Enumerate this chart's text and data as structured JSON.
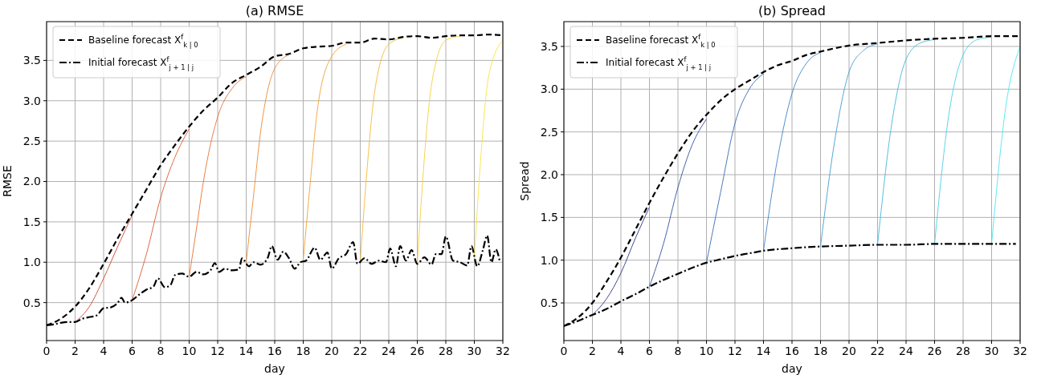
{
  "chart_data": [
    {
      "type": "line",
      "title": "(a) RMSE",
      "xlabel": "day",
      "ylabel": "RMSE",
      "xlim": [
        0,
        32
      ],
      "ylim": [
        0.03,
        3.98
      ],
      "xticks": [
        0,
        2,
        4,
        6,
        8,
        10,
        12,
        14,
        16,
        18,
        20,
        22,
        24,
        26,
        28,
        30,
        32
      ],
      "yticks": [
        0.5,
        {
          "value": 1,
          "label": "1.0"
        },
        1.5,
        {
          "value": 2,
          "label": "2.0"
        },
        2.5,
        {
          "value": 3,
          "label": "3.0"
        },
        3.5
      ],
      "grid": true,
      "legend": "top left",
      "series": [
        {
          "color": "#d2452f",
          "x": [
            2,
            3,
            4,
            5,
            6
          ],
          "values": [
            0.26,
            0.45,
            0.8,
            1.2,
            1.58
          ]
        },
        {
          "color": "#dc5a2f",
          "x": [
            6,
            7,
            8,
            9,
            10
          ],
          "values": [
            0.53,
            1.1,
            1.8,
            2.3,
            2.65
          ]
        },
        {
          "color": "#e57330",
          "x": [
            10,
            10.5,
            11,
            12,
            13,
            14
          ],
          "values": [
            0.82,
            1.4,
            2.0,
            2.8,
            3.15,
            3.3
          ]
        },
        {
          "color": "#ec8a32",
          "x": [
            14,
            14.5,
            15,
            16,
            17
          ],
          "values": [
            1.0,
            1.8,
            2.6,
            3.4,
            3.57
          ]
        },
        {
          "color": "#f0a236",
          "x": [
            18,
            18.5,
            19,
            20,
            21
          ],
          "values": [
            1.02,
            2.0,
            2.9,
            3.55,
            3.7
          ]
        },
        {
          "color": "#f3b93a",
          "x": [
            22,
            22.5,
            23,
            24,
            25
          ],
          "values": [
            1.0,
            2.2,
            3.1,
            3.7,
            3.78
          ]
        },
        {
          "color": "#f5cf3d",
          "x": [
            26,
            26.5,
            27,
            28,
            29
          ],
          "values": [
            0.98,
            2.3,
            3.2,
            3.75,
            3.8
          ]
        },
        {
          "color": "#f7e341",
          "x": [
            30,
            30.5,
            31,
            32
          ],
          "values": [
            1.05,
            2.4,
            3.3,
            3.75
          ]
        },
        {
          "name": "Baseline forecast X$^{f}$$_{k | 0}$",
          "color": "#000000",
          "line_style": "dashed",
          "x": [
            0,
            1,
            2,
            3,
            4,
            5,
            6,
            7,
            8,
            9,
            10,
            11,
            12,
            13,
            14,
            15,
            16,
            17,
            18,
            19,
            20,
            21,
            22,
            23,
            24,
            25,
            26,
            27,
            28,
            29,
            30,
            31,
            32
          ],
          "values": [
            0.22,
            0.3,
            0.45,
            0.68,
            0.98,
            1.3,
            1.6,
            1.9,
            2.2,
            2.45,
            2.68,
            2.88,
            3.04,
            3.22,
            3.32,
            3.42,
            3.55,
            3.58,
            3.65,
            3.67,
            3.68,
            3.72,
            3.72,
            3.77,
            3.76,
            3.79,
            3.8,
            3.78,
            3.8,
            3.81,
            3.81,
            3.82,
            3.81
          ]
        },
        {
          "name": "Initial forecast X$^{f}$$_{j + 1 | j}$",
          "color": "#000000",
          "line_style": "dashdot",
          "x": [
            0,
            0.5,
            1,
            1.5,
            2,
            2.5,
            3,
            3.5,
            4,
            4.5,
            5,
            5.25,
            5.5,
            6,
            6.5,
            7,
            7.5,
            7.8,
            8.3,
            8.7,
            9,
            9.5,
            10,
            10.5,
            11,
            11.5,
            11.8,
            12.1,
            12.5,
            13,
            13.5,
            13.7,
            14.2,
            14.5,
            15,
            15.5,
            15.8,
            16.2,
            16.6,
            17,
            17.4,
            17.8,
            18.2,
            18.8,
            19.2,
            19.7,
            20,
            20.5,
            21,
            21.5,
            21.8,
            22.3,
            22.8,
            23.3,
            23.8,
            24.1,
            24.5,
            24.8,
            25.2,
            25.6,
            26,
            26.5,
            27,
            27.3,
            27.7,
            28,
            28.5,
            29,
            29.5,
            29.8,
            30.2,
            30.6,
            30.9,
            31.2,
            31.5,
            31.8
          ],
          "values": [
            0.22,
            0.23,
            0.25,
            0.26,
            0.26,
            0.3,
            0.32,
            0.34,
            0.43,
            0.44,
            0.5,
            0.56,
            0.5,
            0.53,
            0.6,
            0.66,
            0.7,
            0.8,
            0.69,
            0.72,
            0.84,
            0.86,
            0.82,
            0.88,
            0.85,
            0.9,
            0.99,
            0.88,
            0.92,
            0.9,
            0.91,
            1.05,
            0.95,
            1.0,
            0.97,
            1.05,
            1.2,
            1.03,
            1.13,
            1.05,
            0.92,
            1.0,
            1.02,
            1.18,
            1.03,
            1.12,
            0.92,
            1.05,
            1.1,
            1.25,
            0.98,
            1.05,
            0.98,
            1.02,
            1.0,
            1.17,
            0.95,
            1.2,
            1.02,
            1.15,
            0.98,
            1.06,
            0.97,
            1.1,
            1.1,
            1.32,
            1.02,
            1.0,
            0.96,
            1.2,
            0.95,
            1.15,
            1.33,
            1.0,
            1.16,
            1.0
          ]
        }
      ]
    },
    {
      "type": "line",
      "title": "(b) Spread",
      "xlabel": "day",
      "ylabel": "Spread",
      "xlim": [
        0,
        32
      ],
      "ylim": [
        0.06,
        3.79
      ],
      "xticks": [
        0,
        2,
        4,
        6,
        8,
        10,
        12,
        14,
        16,
        18,
        20,
        22,
        24,
        26,
        28,
        30,
        32
      ],
      "yticks": [
        0.5,
        {
          "value": 1,
          "label": "1.0"
        },
        1.5,
        {
          "value": 2,
          "label": "2.0"
        },
        2.5,
        {
          "value": 3,
          "label": "3.0"
        },
        3.5
      ],
      "grid": true,
      "legend": "top left",
      "series": [
        {
          "color": "#2e3688",
          "x": [
            2,
            3,
            4,
            5,
            6
          ],
          "values": [
            0.36,
            0.55,
            0.85,
            1.25,
            1.62
          ]
        },
        {
          "color": "#3150a0",
          "x": [
            6,
            7,
            8,
            9,
            10
          ],
          "values": [
            0.69,
            1.2,
            1.85,
            2.35,
            2.65
          ]
        },
        {
          "color": "#3869b4",
          "x": [
            10,
            11,
            12,
            13,
            14
          ],
          "values": [
            0.97,
            1.8,
            2.6,
            3.0,
            3.18
          ]
        },
        {
          "color": "#3d83c4",
          "x": [
            14,
            15,
            16,
            17,
            18
          ],
          "values": [
            1.11,
            2.2,
            2.95,
            3.3,
            3.43
          ]
        },
        {
          "color": "#429dd3",
          "x": [
            18,
            19,
            20,
            21,
            22
          ],
          "values": [
            1.16,
            2.4,
            3.2,
            3.45,
            3.53
          ]
        },
        {
          "color": "#46b6df",
          "x": [
            22,
            23,
            24,
            25,
            26
          ],
          "values": [
            1.18,
            2.6,
            3.35,
            3.54,
            3.58
          ]
        },
        {
          "color": "#49cfe8",
          "x": [
            26,
            27,
            28,
            29,
            30
          ],
          "values": [
            1.19,
            2.7,
            3.4,
            3.58,
            3.61
          ]
        },
        {
          "color": "#4ce6f0",
          "x": [
            30,
            31,
            32
          ],
          "values": [
            1.19,
            2.8,
            3.5
          ]
        },
        {
          "name": "Baseline forecast X$^{f}$$_{k | 0}$",
          "color": "#000000",
          "line_style": "dashed",
          "x": [
            0,
            1,
            2,
            3,
            4,
            5,
            6,
            7,
            8,
            9,
            10,
            11,
            12,
            13,
            14,
            15,
            16,
            17,
            18,
            20,
            22,
            24,
            26,
            28,
            30,
            32
          ],
          "values": [
            0.23,
            0.33,
            0.5,
            0.75,
            1.03,
            1.35,
            1.67,
            1.97,
            2.25,
            2.5,
            2.7,
            2.87,
            3.0,
            3.1,
            3.2,
            3.28,
            3.33,
            3.4,
            3.44,
            3.51,
            3.54,
            3.57,
            3.59,
            3.6,
            3.62,
            3.62
          ]
        },
        {
          "name": "Initial forecast X$^{f}$$_{j + 1 | j}$",
          "color": "#000000",
          "line_style": "dashdot",
          "x": [
            0,
            1,
            2,
            3,
            4,
            5,
            6,
            7,
            8,
            9,
            10,
            11,
            12,
            13,
            14,
            16,
            18,
            20,
            22,
            24,
            26,
            28,
            30,
            31.7
          ],
          "values": [
            0.23,
            0.29,
            0.36,
            0.43,
            0.52,
            0.6,
            0.69,
            0.77,
            0.84,
            0.91,
            0.97,
            1.01,
            1.05,
            1.08,
            1.11,
            1.14,
            1.16,
            1.17,
            1.18,
            1.18,
            1.19,
            1.19,
            1.19,
            1.19
          ]
        }
      ]
    }
  ]
}
